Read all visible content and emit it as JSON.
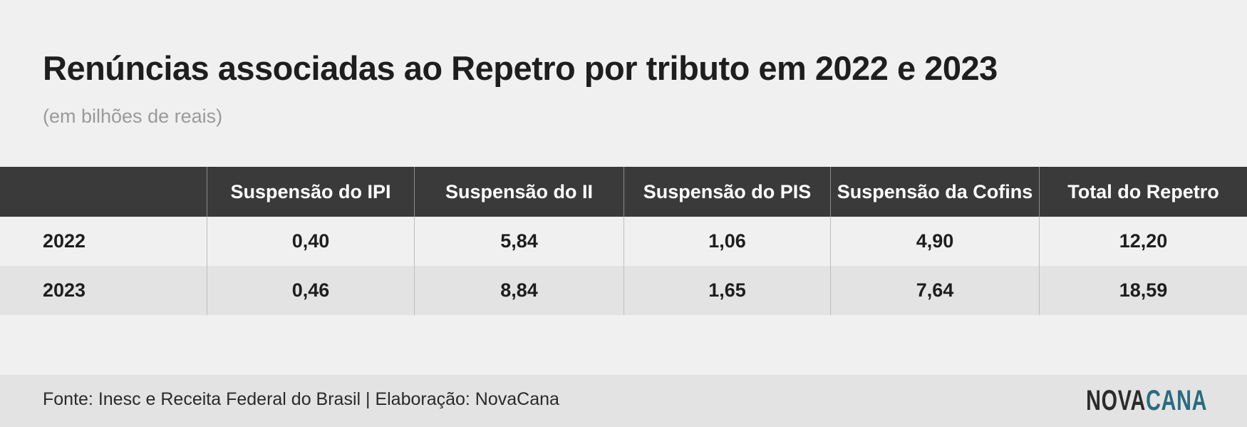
{
  "header": {
    "title": "Renúncias associadas ao Repetro por tributo em 2022 e 2023",
    "subtitle": "(em bilhões de reais)"
  },
  "table": {
    "columns": [
      "Suspensão do IPI",
      "Suspensão do II",
      "Suspensão do PIS",
      "Suspensão da Cofins",
      "Total do Repetro"
    ],
    "rows": [
      [
        "2022",
        "0,40",
        "5,84",
        "1,06",
        "4,90",
        "12,20"
      ],
      [
        "2023",
        "0,46",
        "8,84",
        "1,65",
        "7,64",
        "18,59"
      ]
    ]
  },
  "footer": {
    "source": "Fonte: Inesc e Receita Federal do Brasil | Elaboração: NovaCana",
    "logo": [
      "NOVA",
      "CANA"
    ]
  }
}
